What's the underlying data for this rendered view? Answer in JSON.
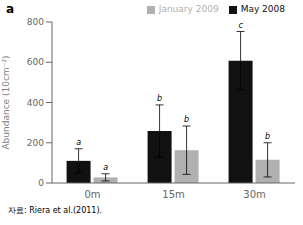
{
  "chart_data": {
    "type": "bar",
    "title": "a",
    "categories": [
      "0m",
      "15m",
      "30m"
    ],
    "series": [
      {
        "name": "May 2008",
        "color": "#111111",
        "values": [
          110,
          258,
          608
        ],
        "errors": [
          60,
          130,
          145
        ],
        "annotations": [
          "a",
          "b",
          "c"
        ]
      },
      {
        "name": "January 2009",
        "color": "#b0b0b0",
        "values": [
          28,
          163,
          115
        ],
        "errors": [
          18,
          120,
          85
        ],
        "annotations": [
          "a",
          "b",
          "b"
        ]
      }
    ],
    "ylabel": "Abundance (10cm⁻²)",
    "ylim": [
      0,
      800
    ],
    "yticks": [
      0,
      200,
      400,
      600,
      800
    ],
    "grid": false,
    "legend": "upper right",
    "annotations": [
      "자료: Riera et al.(2011)."
    ]
  }
}
